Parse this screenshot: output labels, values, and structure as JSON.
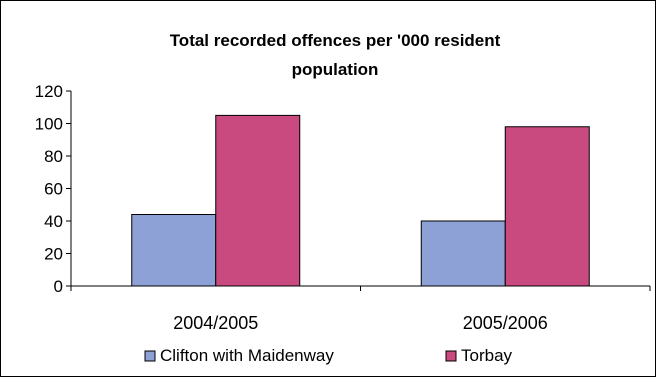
{
  "chart_data": {
    "type": "bar",
    "title_lines": [
      "Total recorded offences per '000 resident",
      "population"
    ],
    "categories": [
      "2004/2005",
      "2005/2006"
    ],
    "series": [
      {
        "name": "Clifton with Maidenway",
        "color": "#8ea1d6",
        "values": [
          44,
          40
        ]
      },
      {
        "name": "Torbay",
        "color": "#c94a7f",
        "values": [
          105,
          98
        ]
      }
    ],
    "ylim": [
      0,
      120
    ],
    "yticks": [
      0,
      20,
      40,
      60,
      80,
      100,
      120
    ],
    "xlabel": "",
    "ylabel": "",
    "grid": false,
    "legend_position": "bottom"
  }
}
